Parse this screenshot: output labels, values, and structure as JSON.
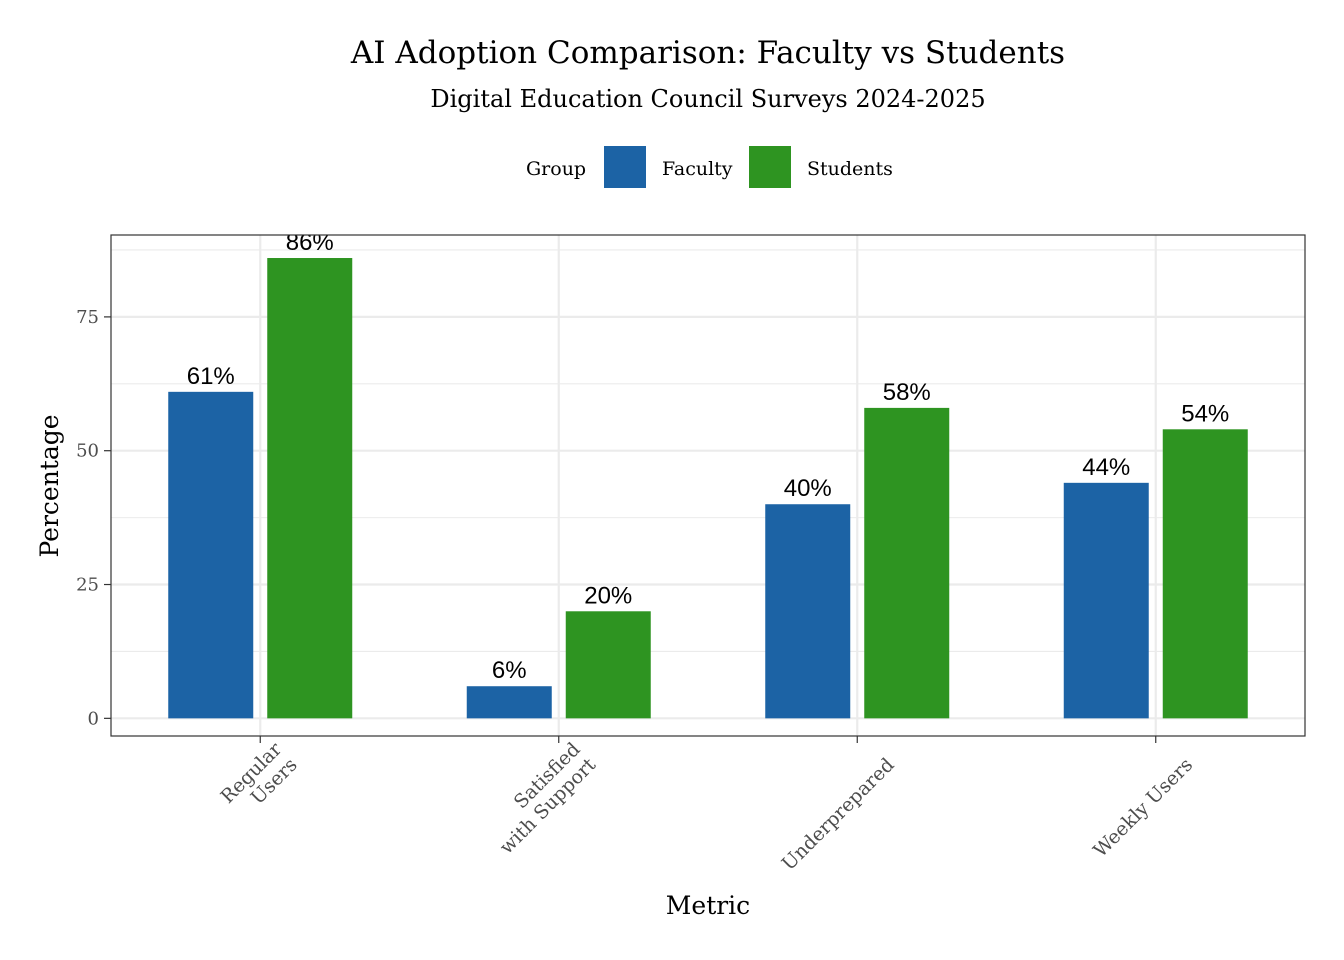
{
  "chart_data": {
    "type": "bar",
    "title": "AI Adoption Comparison: Faculty vs Students",
    "subtitle": "Digital Education Council Surveys 2024-2025",
    "xlabel": "Metric",
    "ylabel": "Percentage",
    "legend_title": "Group",
    "legend_position": "top",
    "categories": [
      "Regular\nUsers",
      "Satisfied\nwith Support",
      "Underprepared",
      "Weekly Users"
    ],
    "series": [
      {
        "name": "Faculty",
        "color": "#1c63a5",
        "values": [
          61,
          6,
          40,
          44
        ],
        "labels": [
          "61%",
          "6%",
          "40%",
          "44%"
        ]
      },
      {
        "name": "Students",
        "color": "#2e9421",
        "values": [
          86,
          20,
          58,
          54
        ],
        "labels": [
          "86%",
          "20%",
          "58%",
          "54%"
        ]
      }
    ],
    "ylim": [
      -3.3,
      90.3
    ],
    "yticks": [
      0,
      25,
      50,
      75
    ],
    "ytick_labels": [
      "0",
      "25",
      "50",
      "75"
    ],
    "grid": true
  }
}
